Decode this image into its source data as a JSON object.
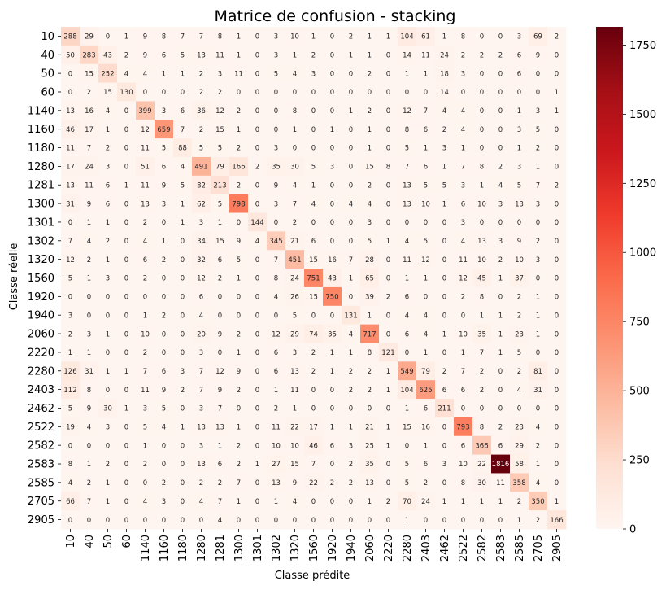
{
  "chart_data": {
    "type": "heatmap",
    "title": "Matrice de confusion - stacking",
    "xlabel": "Classe prédite",
    "ylabel": "Classe réelle",
    "labels": [
      "10",
      "40",
      "50",
      "60",
      "1140",
      "1160",
      "1180",
      "1280",
      "1281",
      "1300",
      "1301",
      "1302",
      "1320",
      "1560",
      "1920",
      "1940",
      "2060",
      "2220",
      "2280",
      "2403",
      "2462",
      "2522",
      "2582",
      "2583",
      "2585",
      "2705",
      "2905"
    ],
    "colorscale": "Reds",
    "vmin": 0,
    "vmax": 1816,
    "colorbar_ticks": [
      0,
      250,
      500,
      750,
      1000,
      1250,
      1500,
      1750
    ],
    "values": [
      [
        288,
        29,
        0,
        1,
        9,
        8,
        7,
        7,
        8,
        1,
        0,
        3,
        10,
        1,
        0,
        2,
        1,
        1,
        104,
        61,
        1,
        8,
        0,
        0,
        3,
        69,
        2
      ],
      [
        50,
        283,
        43,
        2,
        9,
        6,
        5,
        13,
        11,
        1,
        0,
        3,
        1,
        2,
        0,
        1,
        1,
        0,
        14,
        11,
        24,
        2,
        2,
        2,
        6,
        9,
        0
      ],
      [
        0,
        15,
        252,
        4,
        4,
        1,
        1,
        2,
        3,
        11,
        0,
        5,
        4,
        3,
        0,
        0,
        2,
        0,
        1,
        1,
        18,
        3,
        0,
        0,
        6,
        0,
        0
      ],
      [
        0,
        2,
        15,
        130,
        0,
        0,
        0,
        2,
        2,
        0,
        0,
        0,
        0,
        0,
        0,
        0,
        0,
        0,
        0,
        0,
        14,
        0,
        0,
        0,
        0,
        0,
        1
      ],
      [
        13,
        16,
        4,
        0,
        399,
        3,
        6,
        36,
        12,
        2,
        0,
        0,
        8,
        0,
        0,
        1,
        2,
        0,
        12,
        7,
        4,
        4,
        0,
        0,
        1,
        3,
        1
      ],
      [
        46,
        17,
        1,
        0,
        12,
        659,
        7,
        2,
        15,
        1,
        0,
        0,
        1,
        0,
        1,
        0,
        1,
        0,
        8,
        6,
        2,
        4,
        0,
        0,
        3,
        5,
        0
      ],
      [
        11,
        7,
        2,
        0,
        11,
        5,
        88,
        5,
        5,
        2,
        0,
        3,
        0,
        0,
        0,
        0,
        1,
        0,
        5,
        1,
        3,
        1,
        0,
        0,
        1,
        2,
        0
      ],
      [
        17,
        24,
        3,
        0,
        51,
        6,
        4,
        491,
        79,
        166,
        2,
        35,
        30,
        5,
        3,
        0,
        15,
        8,
        7,
        6,
        1,
        7,
        8,
        2,
        3,
        1,
        0
      ],
      [
        13,
        11,
        6,
        1,
        11,
        9,
        5,
        82,
        213,
        2,
        0,
        9,
        4,
        1,
        0,
        0,
        2,
        0,
        13,
        5,
        5,
        3,
        1,
        4,
        5,
        7,
        2
      ],
      [
        31,
        9,
        6,
        0,
        13,
        3,
        1,
        62,
        5,
        798,
        0,
        3,
        7,
        4,
        0,
        4,
        4,
        0,
        13,
        10,
        1,
        6,
        10,
        3,
        13,
        3,
        0
      ],
      [
        0,
        1,
        1,
        0,
        2,
        0,
        1,
        3,
        1,
        0,
        144,
        0,
        2,
        0,
        0,
        0,
        3,
        0,
        0,
        0,
        0,
        3,
        0,
        0,
        0,
        0,
        0
      ],
      [
        7,
        4,
        2,
        0,
        4,
        1,
        0,
        34,
        15,
        9,
        4,
        345,
        21,
        6,
        0,
        0,
        5,
        1,
        4,
        5,
        0,
        4,
        13,
        3,
        9,
        2,
        0
      ],
      [
        12,
        2,
        1,
        0,
        6,
        2,
        0,
        32,
        6,
        5,
        0,
        7,
        451,
        15,
        16,
        7,
        28,
        0,
        11,
        12,
        0,
        11,
        10,
        2,
        10,
        3,
        0
      ],
      [
        5,
        1,
        3,
        0,
        2,
        0,
        0,
        12,
        2,
        1,
        0,
        8,
        24,
        751,
        43,
        1,
        65,
        0,
        1,
        1,
        0,
        12,
        45,
        1,
        37,
        0,
        0
      ],
      [
        0,
        0,
        0,
        0,
        0,
        0,
        0,
        6,
        0,
        0,
        0,
        4,
        26,
        15,
        750,
        0,
        39,
        2,
        6,
        0,
        0,
        2,
        8,
        0,
        2,
        1,
        0
      ],
      [
        3,
        0,
        0,
        0,
        1,
        2,
        0,
        4,
        0,
        0,
        0,
        0,
        5,
        0,
        0,
        131,
        1,
        0,
        4,
        4,
        0,
        0,
        1,
        1,
        2,
        1,
        0
      ],
      [
        2,
        3,
        1,
        0,
        10,
        0,
        0,
        20,
        9,
        2,
        0,
        12,
        29,
        74,
        35,
        4,
        717,
        0,
        6,
        4,
        1,
        10,
        35,
        1,
        23,
        1,
        0
      ],
      [
        1,
        1,
        0,
        0,
        2,
        0,
        0,
        3,
        0,
        1,
        0,
        6,
        3,
        2,
        1,
        1,
        8,
        121,
        0,
        1,
        0,
        1,
        7,
        1,
        5,
        0,
        0
      ],
      [
        126,
        31,
        1,
        1,
        7,
        6,
        3,
        7,
        12,
        9,
        0,
        6,
        13,
        2,
        1,
        2,
        2,
        1,
        549,
        79,
        2,
        7,
        2,
        0,
        2,
        81,
        0
      ],
      [
        112,
        8,
        0,
        0,
        11,
        9,
        2,
        7,
        9,
        2,
        0,
        1,
        11,
        0,
        0,
        2,
        2,
        1,
        104,
        625,
        6,
        6,
        2,
        0,
        4,
        31,
        0
      ],
      [
        5,
        9,
        30,
        1,
        3,
        5,
        0,
        3,
        7,
        0,
        0,
        2,
        1,
        0,
        0,
        0,
        0,
        0,
        1,
        6,
        211,
        0,
        0,
        0,
        0,
        0,
        0
      ],
      [
        19,
        4,
        3,
        0,
        5,
        4,
        1,
        13,
        13,
        1,
        0,
        11,
        22,
        17,
        1,
        1,
        21,
        1,
        15,
        16,
        0,
        793,
        8,
        2,
        23,
        4,
        0
      ],
      [
        0,
        0,
        0,
        0,
        1,
        0,
        0,
        3,
        1,
        2,
        0,
        10,
        10,
        46,
        6,
        3,
        25,
        1,
        0,
        1,
        0,
        6,
        366,
        6,
        29,
        2,
        0
      ],
      [
        8,
        1,
        2,
        0,
        2,
        0,
        0,
        13,
        6,
        2,
        1,
        27,
        15,
        7,
        0,
        2,
        35,
        0,
        5,
        6,
        3,
        10,
        22,
        1816,
        58,
        1,
        0
      ],
      [
        4,
        2,
        1,
        0,
        0,
        2,
        0,
        2,
        2,
        7,
        0,
        13,
        9,
        22,
        2,
        2,
        13,
        0,
        5,
        2,
        0,
        8,
        30,
        11,
        358,
        4,
        0
      ],
      [
        66,
        7,
        1,
        0,
        4,
        3,
        0,
        4,
        7,
        1,
        0,
        1,
        4,
        0,
        0,
        0,
        1,
        2,
        70,
        24,
        1,
        1,
        1,
        1,
        2,
        350,
        1
      ],
      [
        0,
        0,
        0,
        0,
        0,
        0,
        0,
        0,
        4,
        0,
        0,
        0,
        0,
        0,
        0,
        0,
        0,
        0,
        1,
        0,
        0,
        0,
        0,
        0,
        1,
        2,
        166
      ]
    ]
  }
}
